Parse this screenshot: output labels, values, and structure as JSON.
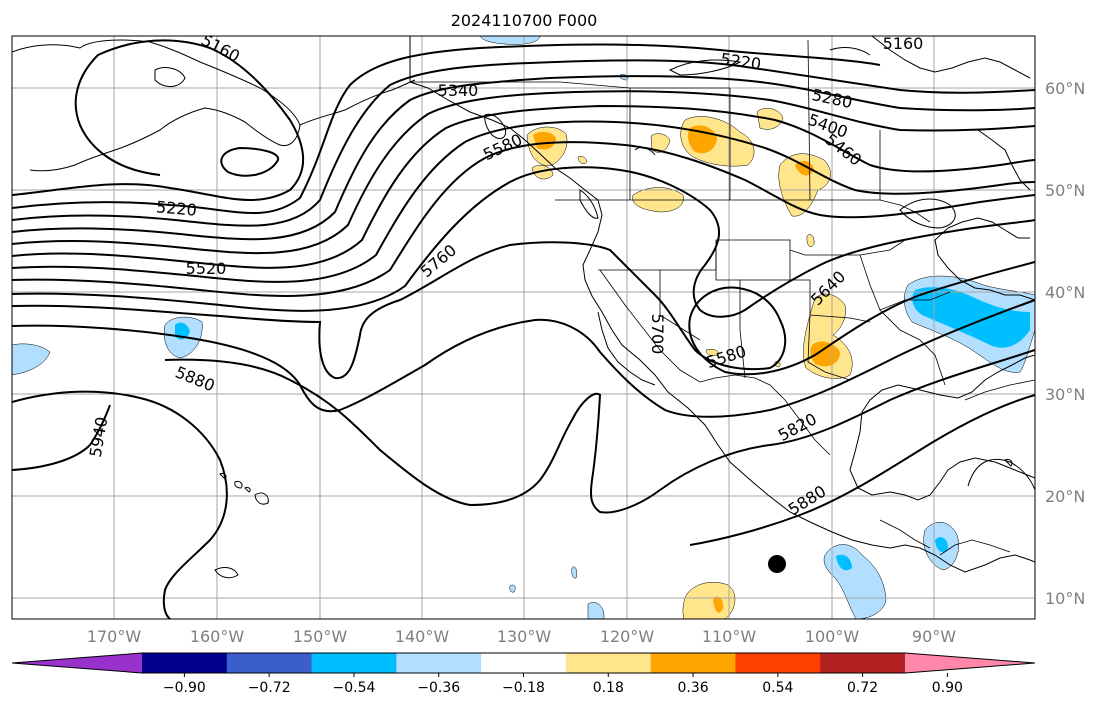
{
  "title": "2024110700 F000",
  "map": {
    "latitude_labels": [
      "60°N",
      "50°N",
      "40°N",
      "30°N",
      "20°N",
      "10°N"
    ],
    "longitude_labels": [
      "170°W",
      "160°W",
      "150°W",
      "140°W",
      "130°W",
      "120°W",
      "110°W",
      "100°W",
      "90°W"
    ],
    "height_contour_labels": [
      "5160",
      "5220",
      "5280",
      "5340",
      "5400",
      "5460",
      "5520",
      "5580",
      "5640",
      "5700",
      "5760",
      "5820",
      "5880",
      "5940"
    ],
    "colors": {
      "coastline": "#000000",
      "height_contours": "#000000",
      "gridlines": "#a6a6a6"
    },
    "marker": {
      "icon": "black-filled-circle",
      "color": "#000000"
    }
  },
  "colorbar": {
    "tick_labels": [
      "−0.90",
      "−0.72",
      "−0.54",
      "−0.36",
      "−0.18",
      "0.18",
      "0.36",
      "0.54",
      "0.72",
      "0.90"
    ],
    "colors": [
      "#9932cc",
      "#00008b",
      "#3a5fcd",
      "#00bfff",
      "#b2dfff",
      "#ffffff",
      "#ffe68c",
      "#ffa500",
      "#ff3f00",
      "#b22222",
      "#ff88aa"
    ]
  }
}
